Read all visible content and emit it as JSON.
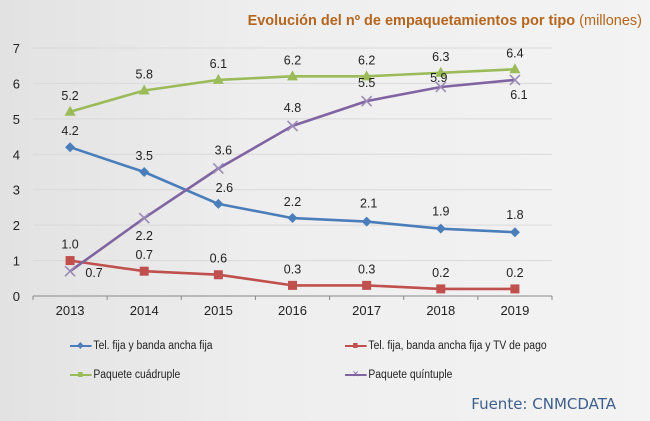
{
  "chart_data": {
    "type": "line",
    "title": "Evolución del nº de empaquetamientos por tipo",
    "title_unit": "(millones)",
    "xlabel": "",
    "ylabel": "",
    "categories": [
      "2013",
      "2014",
      "2015",
      "2016",
      "2017",
      "2018",
      "2019"
    ],
    "ylim": [
      0,
      7
    ],
    "yticks": [
      0,
      1,
      2,
      3,
      4,
      5,
      6,
      7
    ],
    "grid": true,
    "legend_position": "bottom",
    "series": [
      {
        "name": "Tel. fija y banda ancha fija",
        "color": "#4a7ebb",
        "marker": "diamond",
        "values": [
          4.2,
          3.5,
          2.6,
          2.2,
          2.1,
          1.9,
          1.8
        ],
        "labels": [
          "4.2",
          "3.5",
          "2.6",
          "2.2",
          "2.1",
          "1.9",
          "1.8"
        ]
      },
      {
        "name": "Tel. fija, banda ancha fija y TV de pago",
        "color": "#c0504d",
        "marker": "square",
        "values": [
          1.0,
          0.7,
          0.6,
          0.3,
          0.3,
          0.2,
          0.2
        ],
        "labels": [
          "1.0",
          "0.7",
          "0.6",
          "0.3",
          "0.3",
          "0.2",
          "0.2"
        ]
      },
      {
        "name": "Paquete cuádruple",
        "color": "#9bbb59",
        "marker": "triangle",
        "values": [
          5.2,
          5.8,
          6.1,
          6.2,
          6.2,
          6.3,
          6.4
        ],
        "labels": [
          "5.2",
          "5.8",
          "6.1",
          "6.2",
          "6.2",
          "6.3",
          "6.4"
        ]
      },
      {
        "name": "Paquete quíntuple",
        "color": "#8064a2",
        "marker": "x",
        "values": [
          0.7,
          2.2,
          3.6,
          4.8,
          5.5,
          5.9,
          6.1
        ],
        "labels": [
          "0.7",
          "2.2",
          "3.6",
          "4.8",
          "5.5",
          "5.9",
          "6.1"
        ]
      }
    ],
    "source": "Fuente: CNMCDATA"
  }
}
